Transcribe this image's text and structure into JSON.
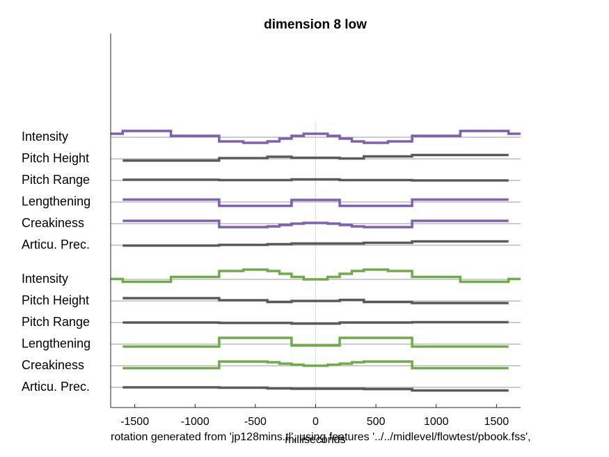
{
  "chart_data": {
    "type": "line",
    "title": "dimension  8 low",
    "xlabel": "milliseconds",
    "footnote": "rotation generated from 'jp128mins.tl', using features '../../midlevel/flowtest/pbook.fss',",
    "xlim": [
      -1700,
      1700
    ],
    "xticks": [
      -1500,
      -1000,
      -500,
      0,
      500,
      1000,
      1500
    ],
    "xtick_labels": [
      "-1500",
      "-1000",
      "-500",
      "0",
      "500",
      "1000",
      "1500"
    ],
    "grid": false,
    "colors": {
      "purple": "#7f5fb2",
      "gray": "#5a5a5a",
      "green": "#6fab48",
      "baseline": "#999999",
      "zero_line": "#dddddd"
    },
    "groups": [
      {
        "rows": [
          {
            "label": "Intensity",
            "color": "purple",
            "x": [
              -1700,
              -1600,
              -1600,
              -1200,
              -1200,
              -800,
              -800,
              -600,
              -600,
              -400,
              -400,
              -300,
              -300,
              -200,
              -200,
              -100,
              -100,
              0,
              0,
              100,
              100,
              200,
              200,
              300,
              300,
              400,
              400,
              600,
              600,
              800,
              800,
              1200,
              1200,
              1600,
              1600,
              1700
            ],
            "y": [
              0.5,
              0.5,
              0.9,
              0.9,
              0.2,
              0.2,
              -0.6,
              -0.6,
              -0.8,
              -0.8,
              -0.6,
              -0.6,
              -0.2,
              -0.2,
              0.2,
              0.2,
              0.5,
              0.5,
              0.5,
              0.5,
              0.2,
              0.2,
              -0.2,
              -0.2,
              -0.6,
              -0.6,
              -0.8,
              -0.8,
              -0.6,
              -0.6,
              0.2,
              0.2,
              0.9,
              0.9,
              0.5,
              0.5
            ]
          },
          {
            "label": "Pitch Height",
            "color": "gray",
            "x": [
              -1600,
              -800,
              -800,
              -400,
              -400,
              -200,
              -200,
              200,
              200,
              400,
              400,
              800,
              800,
              1600
            ],
            "y": [
              -0.25,
              -0.25,
              0.1,
              0.1,
              0.3,
              0.3,
              0.15,
              0.15,
              0.05,
              0.05,
              0.35,
              0.35,
              0.55,
              0.55
            ]
          },
          {
            "label": "Pitch Range",
            "color": "gray",
            "x": [
              -1600,
              -800,
              -800,
              -200,
              -200,
              200,
              200,
              800,
              800,
              1600
            ],
            "y": [
              0.1,
              0.1,
              0.05,
              0.05,
              0.15,
              0.15,
              0.05,
              0.05,
              0,
              0
            ]
          },
          {
            "label": "Lengthening",
            "color": "purple",
            "x": [
              -1600,
              -800,
              -800,
              -200,
              -200,
              200,
              200,
              800,
              800,
              1600
            ],
            "y": [
              0.35,
              0.35,
              -0.55,
              -0.55,
              0.3,
              0.3,
              -0.55,
              -0.55,
              0.35,
              0.35
            ]
          },
          {
            "label": "Creakiness",
            "color": "purple",
            "x": [
              -1600,
              -800,
              -800,
              -400,
              -400,
              -300,
              -300,
              -200,
              -200,
              -100,
              -100,
              100,
              100,
              200,
              200,
              300,
              300,
              400,
              400,
              800,
              800,
              1600
            ],
            "y": [
              0.4,
              0.4,
              -0.5,
              -0.5,
              -0.4,
              -0.4,
              -0.2,
              -0.2,
              0,
              0,
              0.1,
              0.1,
              0,
              0,
              -0.2,
              -0.2,
              -0.4,
              -0.4,
              -0.5,
              -0.5,
              0.4,
              0.4
            ]
          },
          {
            "label": "Articu. Prec.",
            "color": "gray",
            "x": [
              -1600,
              -800,
              -800,
              -400,
              -400,
              -200,
              -200,
              400,
              400,
              800,
              800,
              1600
            ],
            "y": [
              -0.05,
              -0.05,
              0.05,
              0.05,
              0.15,
              0.15,
              0.25,
              0.25,
              0.35,
              0.35,
              0.55,
              0.55
            ]
          }
        ]
      },
      {
        "rows": [
          {
            "label": "Intensity",
            "color": "green",
            "x": [
              -1700,
              -1600,
              -1600,
              -1200,
              -1200,
              -800,
              -800,
              -600,
              -600,
              -400,
              -400,
              -300,
              -300,
              -200,
              -200,
              -100,
              -100,
              0,
              0,
              100,
              100,
              200,
              200,
              300,
              300,
              400,
              400,
              600,
              600,
              800,
              800,
              1200,
              1200,
              1600,
              1600,
              1700
            ],
            "y": [
              0.05,
              0.05,
              -0.35,
              -0.35,
              0.35,
              0.35,
              1.2,
              1.2,
              1.4,
              1.4,
              1.2,
              1.2,
              0.8,
              0.8,
              0.35,
              0.35,
              0,
              0,
              0,
              0,
              0.35,
              0.35,
              0.8,
              0.8,
              1.2,
              1.2,
              1.4,
              1.4,
              1.2,
              1.2,
              0.35,
              0.35,
              -0.35,
              -0.35,
              0.05,
              0.05
            ]
          },
          {
            "label": "Pitch Height",
            "color": "gray",
            "x": [
              -1600,
              -800,
              -800,
              -400,
              -400,
              -200,
              -200,
              200,
              200,
              400,
              400,
              800,
              800,
              1600
            ],
            "y": [
              0.4,
              0.4,
              0.1,
              0.1,
              -0.15,
              -0.15,
              0,
              0,
              0.15,
              0.15,
              -0.15,
              -0.15,
              -0.3,
              -0.3
            ]
          },
          {
            "label": "Pitch Range",
            "color": "gray",
            "x": [
              -1600,
              -800,
              -800,
              -200,
              -200,
              200,
              200,
              800,
              800,
              1600
            ],
            "y": [
              0,
              0,
              -0.05,
              -0.05,
              -0.15,
              -0.15,
              0,
              0,
              0.05,
              0.05
            ]
          },
          {
            "label": "Lengthening",
            "color": "green",
            "x": [
              -1600,
              -800,
              -800,
              -200,
              -200,
              200,
              200,
              800,
              800,
              1600
            ],
            "y": [
              -0.35,
              -0.35,
              0.9,
              0.9,
              -0.2,
              -0.2,
              0.9,
              0.9,
              -0.35,
              -0.35
            ]
          },
          {
            "label": "Creakiness",
            "color": "green",
            "x": [
              -1600,
              -800,
              -800,
              -400,
              -400,
              -300,
              -300,
              -200,
              -200,
              -100,
              -100,
              100,
              100,
              200,
              200,
              300,
              300,
              400,
              400,
              800,
              800,
              1600
            ],
            "y": [
              -0.35,
              -0.35,
              0.6,
              0.6,
              0.5,
              0.5,
              0.3,
              0.3,
              0.15,
              0.15,
              0,
              0,
              0.15,
              0.15,
              0.3,
              0.3,
              0.5,
              0.5,
              0.6,
              0.6,
              -0.35,
              -0.35
            ]
          },
          {
            "label": "Articu. Prec.",
            "color": "gray",
            "x": [
              -1600,
              -800,
              -800,
              -400,
              -400,
              -200,
              -200,
              400,
              400,
              800,
              800,
              1600
            ],
            "y": [
              0,
              0,
              -0.05,
              -0.05,
              -0.15,
              -0.15,
              -0.2,
              -0.2,
              -0.25,
              -0.25,
              -0.45,
              -0.45
            ]
          }
        ]
      }
    ]
  }
}
